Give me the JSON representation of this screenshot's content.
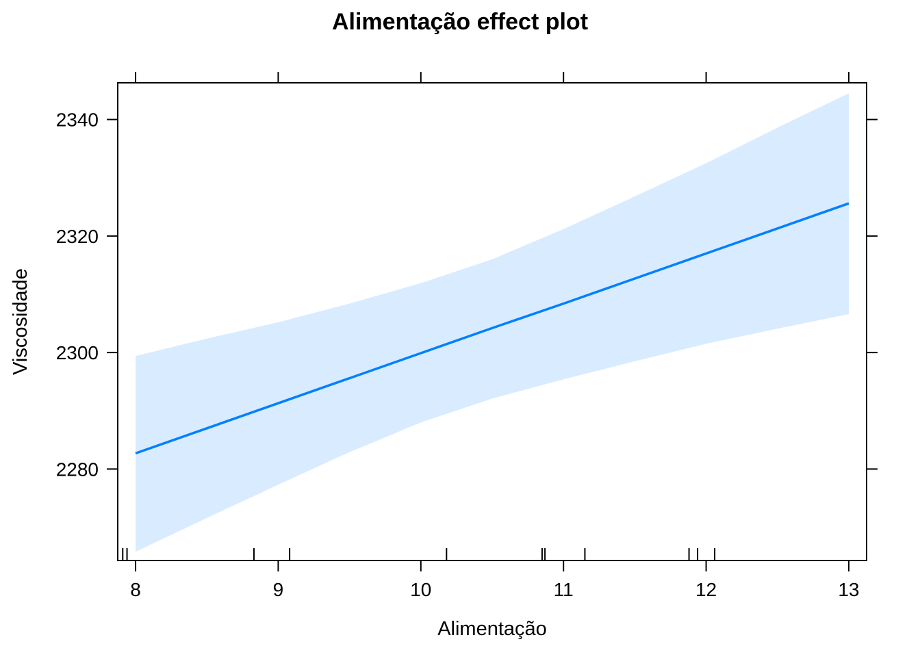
{
  "chart_data": {
    "type": "line",
    "title": "Alimentação effect plot",
    "xlabel": "Alimentação",
    "ylabel": "Viscosidade",
    "xlim": [
      7.875,
      13.125
    ],
    "ylim": [
      2264.3,
      2346.3
    ],
    "x_ticks": [
      8,
      9,
      10,
      11,
      12,
      13
    ],
    "y_ticks": [
      2280,
      2300,
      2320,
      2340
    ],
    "x_tick_labels": [
      "8",
      "9",
      "10",
      "11",
      "12",
      "13"
    ],
    "y_tick_labels": [
      "2280",
      "2300",
      "2320",
      "2340"
    ],
    "grid": false,
    "legend": "none",
    "series": [
      {
        "x": [
          8,
          8.5,
          9,
          9.5,
          10,
          10.5,
          11,
          11.5,
          12,
          12.5,
          13
        ],
        "fit": [
          2282.7,
          2287.0,
          2291.3,
          2295.6,
          2299.9,
          2304.2,
          2308.4,
          2312.7,
          2317.0,
          2321.3,
          2325.6
        ],
        "lower": [
          2265.8,
          2271.6,
          2277.3,
          2282.9,
          2288.0,
          2292.1,
          2295.4,
          2298.5,
          2301.5,
          2304.1,
          2306.6
        ],
        "upper": [
          2299.4,
          2302.4,
          2305.2,
          2308.4,
          2311.9,
          2316.0,
          2321.2,
          2326.8,
          2332.5,
          2338.6,
          2344.5
        ]
      }
    ],
    "rug_x": [
      7.91,
      7.94,
      8.83,
      9.08,
      10.18,
      10.85,
      10.87,
      11.15,
      11.88,
      11.94,
      12.06
    ],
    "colors": {
      "line": "#0080ff",
      "band": "#d9ebff",
      "axis": "#000000"
    }
  }
}
